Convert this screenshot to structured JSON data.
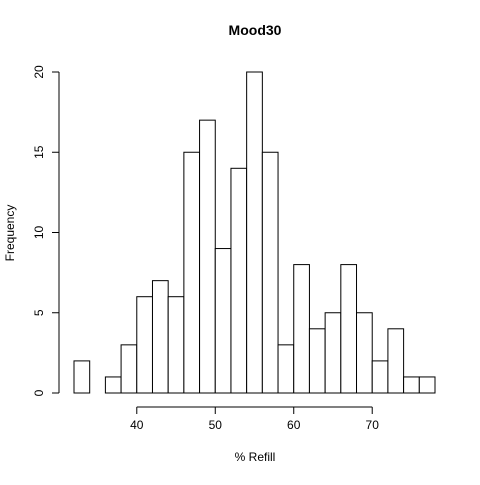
{
  "chart_data": {
    "type": "bar",
    "title": "Mood30",
    "xlabel": "% Refill",
    "ylabel": "Frequency",
    "bins": [
      {
        "start": 32,
        "end": 34,
        "count": 2
      },
      {
        "start": 34,
        "end": 36,
        "count": 0
      },
      {
        "start": 36,
        "end": 38,
        "count": 1
      },
      {
        "start": 38,
        "end": 40,
        "count": 3
      },
      {
        "start": 40,
        "end": 42,
        "count": 6
      },
      {
        "start": 42,
        "end": 44,
        "count": 7
      },
      {
        "start": 44,
        "end": 46,
        "count": 6
      },
      {
        "start": 46,
        "end": 48,
        "count": 15
      },
      {
        "start": 48,
        "end": 50,
        "count": 17
      },
      {
        "start": 50,
        "end": 52,
        "count": 9
      },
      {
        "start": 52,
        "end": 54,
        "count": 14
      },
      {
        "start": 54,
        "end": 56,
        "count": 20
      },
      {
        "start": 56,
        "end": 58,
        "count": 15
      },
      {
        "start": 58,
        "end": 60,
        "count": 3
      },
      {
        "start": 60,
        "end": 62,
        "count": 8
      },
      {
        "start": 62,
        "end": 64,
        "count": 4
      },
      {
        "start": 64,
        "end": 66,
        "count": 5
      },
      {
        "start": 66,
        "end": 68,
        "count": 8
      },
      {
        "start": 68,
        "end": 70,
        "count": 5
      },
      {
        "start": 70,
        "end": 72,
        "count": 2
      },
      {
        "start": 72,
        "end": 74,
        "count": 4
      },
      {
        "start": 74,
        "end": 76,
        "count": 1
      },
      {
        "start": 76,
        "end": 78,
        "count": 1
      }
    ],
    "xticks": [
      40,
      50,
      60,
      70
    ],
    "yticks": [
      0,
      5,
      10,
      15,
      20
    ],
    "xlim": [
      32,
      78
    ],
    "ylim": [
      0,
      20
    ],
    "grid": false,
    "bar_fill": "#ffffff",
    "bar_stroke": "#000000"
  }
}
